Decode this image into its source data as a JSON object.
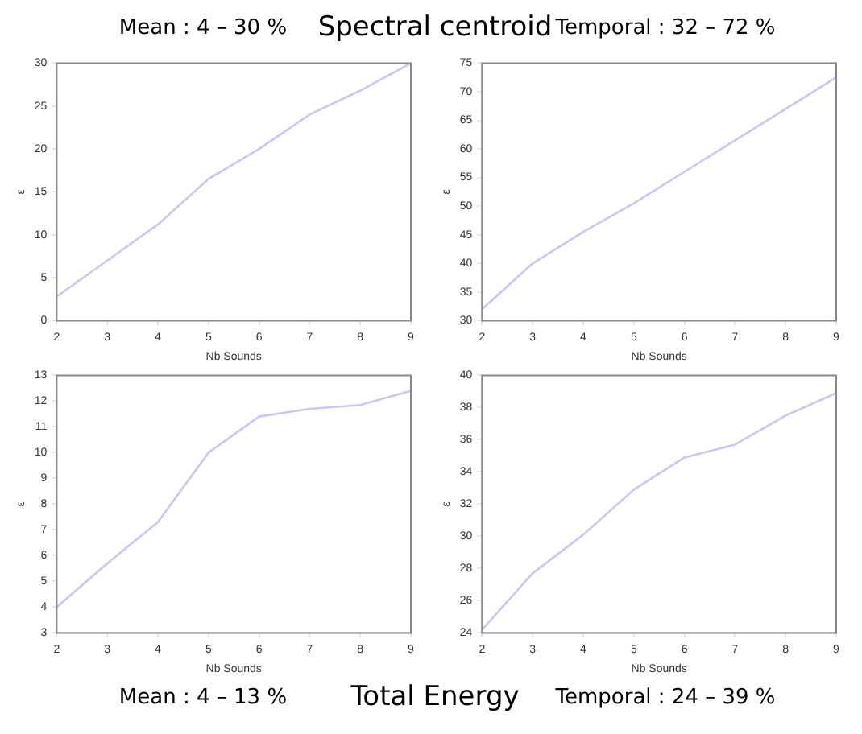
{
  "chart_data": [
    {
      "type": "line",
      "title": "Mean : 4 – 30 %",
      "annotations": [
        "Spectral centroid"
      ],
      "xlabel": "Nb Sounds",
      "ylabel": "ε",
      "color": "#c8c8f0",
      "x": [
        2,
        3,
        4,
        5,
        6,
        7,
        8,
        9
      ],
      "values": [
        2.8,
        7,
        11.2,
        16.5,
        20,
        24,
        26.8,
        30
      ],
      "xlim": [
        2,
        9
      ],
      "xticks": [
        2,
        3,
        4,
        5,
        6,
        7,
        8,
        9
      ],
      "ylim": [
        0,
        30
      ],
      "yticks": [
        0,
        5,
        10,
        15,
        20,
        25,
        30
      ]
    },
    {
      "type": "line",
      "title": "Temporal : 32 – 72 %",
      "xlabel": "Nb Sounds",
      "ylabel": "ε",
      "color": "#c8c8f0",
      "x": [
        2,
        3,
        4,
        5,
        6,
        7,
        8,
        9
      ],
      "values": [
        32,
        40,
        45.5,
        50.5,
        56,
        61.5,
        67,
        72.5
      ],
      "xlim": [
        2,
        9
      ],
      "xticks": [
        2,
        3,
        4,
        5,
        6,
        7,
        8,
        9
      ],
      "ylim": [
        30,
        75
      ],
      "yticks": [
        30,
        35,
        40,
        45,
        50,
        55,
        60,
        65,
        70,
        75
      ]
    },
    {
      "type": "line",
      "title": "Mean : 4 – 13 %",
      "annotations": [
        "Total Energy"
      ],
      "xlabel": "Nb Sounds",
      "ylabel": "ε",
      "color": "#c8c8f0",
      "x": [
        2,
        3,
        4,
        5,
        6,
        7,
        8,
        9
      ],
      "values": [
        4,
        5.7,
        7.3,
        10,
        11.4,
        11.7,
        11.85,
        12.4
      ],
      "xlim": [
        2,
        9
      ],
      "xticks": [
        2,
        3,
        4,
        5,
        6,
        7,
        8,
        9
      ],
      "ylim": [
        3,
        13
      ],
      "yticks": [
        3,
        4,
        5,
        6,
        7,
        8,
        9,
        10,
        11,
        12,
        13
      ]
    },
    {
      "type": "line",
      "title": "Temporal : 24 – 39 %",
      "xlabel": "Nb Sounds",
      "ylabel": "ε",
      "color": "#c8c8f0",
      "x": [
        2,
        3,
        4,
        5,
        6,
        7,
        8,
        9
      ],
      "values": [
        24.2,
        27.7,
        30.1,
        32.9,
        34.9,
        35.7,
        37.5,
        38.9
      ],
      "xlim": [
        2,
        9
      ],
      "xticks": [
        2,
        3,
        4,
        5,
        6,
        7,
        8,
        9
      ],
      "ylim": [
        24,
        40
      ],
      "yticks": [
        24,
        26,
        28,
        30,
        32,
        34,
        36,
        38,
        40
      ]
    }
  ]
}
